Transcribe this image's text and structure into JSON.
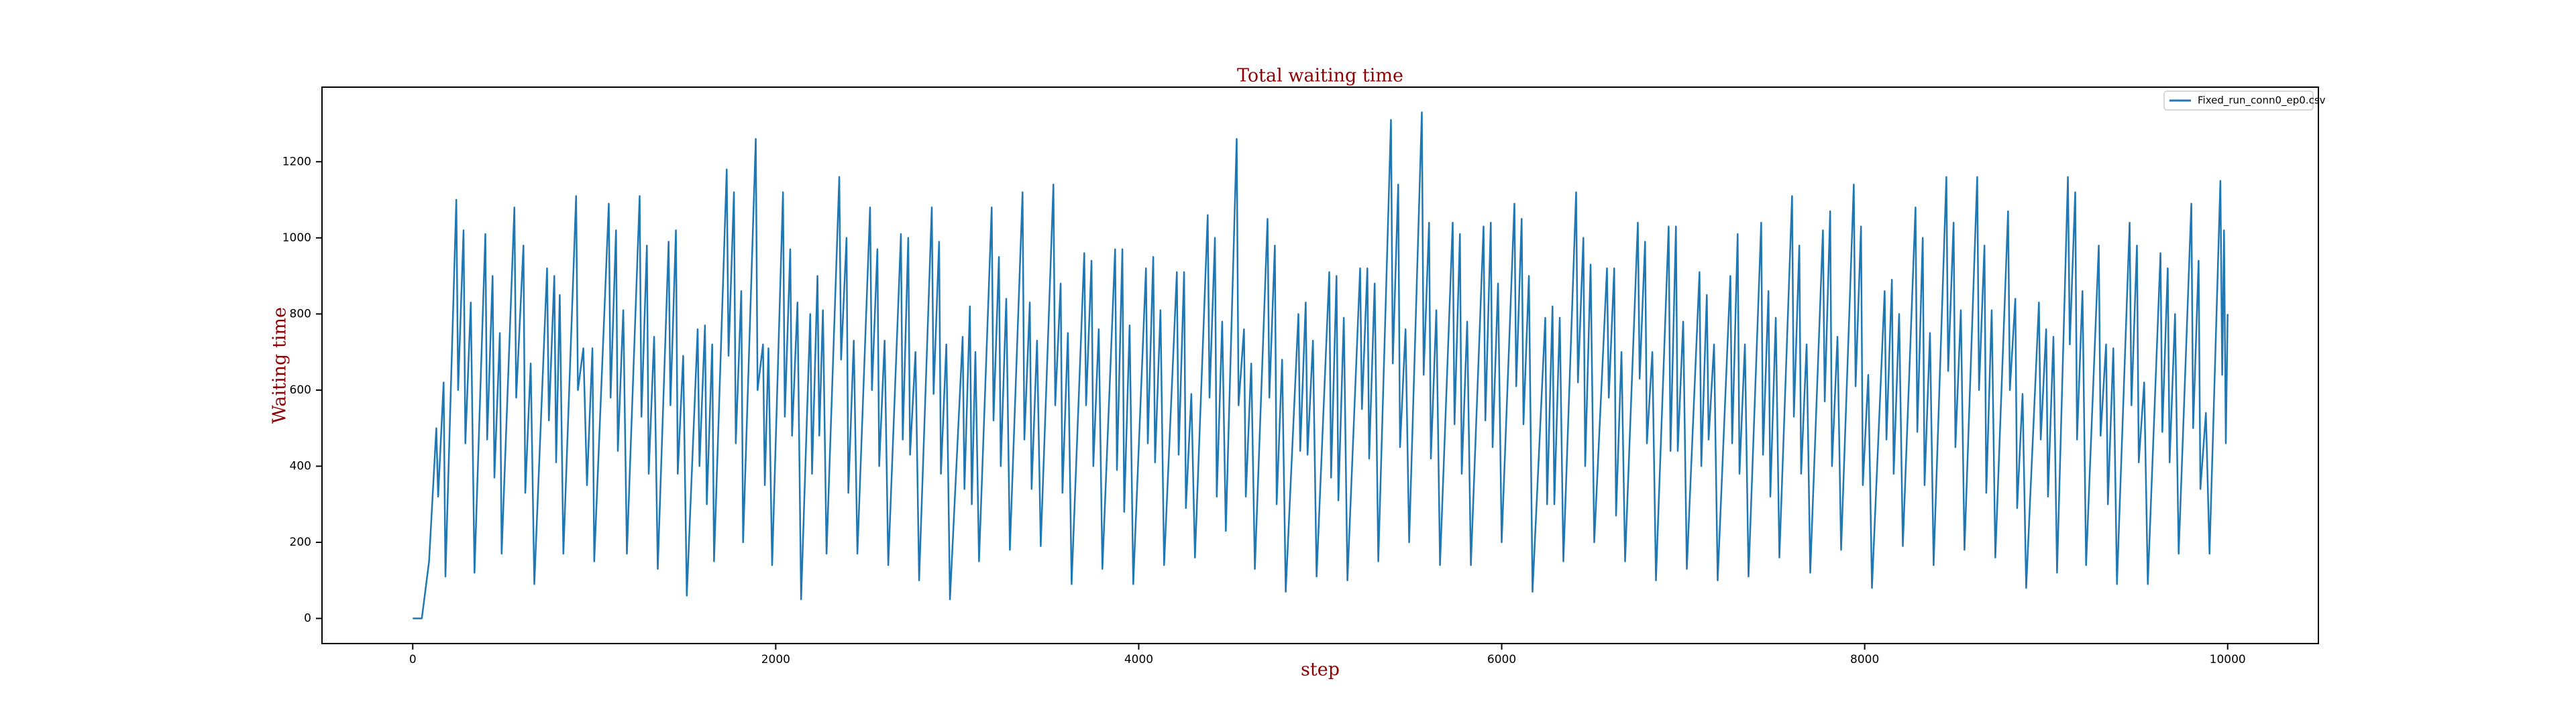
{
  "chart_data": {
    "type": "line",
    "title": "Total waiting time",
    "xlabel": "step",
    "ylabel": "Waiting time",
    "x": [
      0,
      50,
      90,
      130,
      140,
      170,
      180,
      240,
      250,
      280,
      290,
      320,
      340,
      400,
      410,
      440,
      450,
      480,
      490,
      560,
      570,
      610,
      620,
      650,
      670,
      740,
      750,
      780,
      790,
      810,
      830,
      900,
      910,
      940,
      960,
      990,
      1000,
      1080,
      1090,
      1120,
      1130,
      1160,
      1180,
      1250,
      1260,
      1290,
      1300,
      1330,
      1350,
      1410,
      1420,
      1450,
      1460,
      1490,
      1510,
      1570,
      1580,
      1610,
      1620,
      1650,
      1660,
      1730,
      1740,
      1770,
      1780,
      1810,
      1820,
      1890,
      1900,
      1930,
      1940,
      1960,
      1980,
      2040,
      2050,
      2080,
      2090,
      2120,
      2140,
      2190,
      2200,
      2230,
      2240,
      2260,
      2280,
      2350,
      2360,
      2390,
      2400,
      2430,
      2450,
      2520,
      2530,
      2560,
      2570,
      2600,
      2620,
      2690,
      2700,
      2730,
      2740,
      2770,
      2790,
      2860,
      2870,
      2900,
      2910,
      2940,
      2960,
      3030,
      3040,
      3070,
      3080,
      3100,
      3120,
      3190,
      3200,
      3230,
      3240,
      3270,
      3290,
      3360,
      3370,
      3400,
      3410,
      3440,
      3460,
      3530,
      3540,
      3570,
      3580,
      3610,
      3630,
      3700,
      3710,
      3740,
      3750,
      3780,
      3800,
      3870,
      3880,
      3910,
      3920,
      3950,
      3970,
      4040,
      4050,
      4080,
      4090,
      4120,
      4140,
      4210,
      4220,
      4250,
      4260,
      4290,
      4310,
      4380,
      4390,
      4420,
      4430,
      4460,
      4480,
      4540,
      4550,
      4580,
      4590,
      4620,
      4640,
      4710,
      4720,
      4750,
      4760,
      4790,
      4810,
      4880,
      4890,
      4920,
      4930,
      4960,
      4980,
      5050,
      5060,
      5090,
      5100,
      5130,
      5150,
      5220,
      5230,
      5260,
      5270,
      5300,
      5320,
      5390,
      5400,
      5430,
      5440,
      5470,
      5490,
      5560,
      5570,
      5600,
      5610,
      5640,
      5660,
      5730,
      5740,
      5770,
      5780,
      5810,
      5830,
      5900,
      5910,
      5940,
      5950,
      5980,
      6000,
      6070,
      6080,
      6110,
      6120,
      6150,
      6170,
      6240,
      6250,
      6280,
      6290,
      6320,
      6340,
      6410,
      6420,
      6450,
      6460,
      6490,
      6510,
      6580,
      6590,
      6620,
      6630,
      6660,
      6680,
      6750,
      6760,
      6790,
      6800,
      6830,
      6850,
      6920,
      6930,
      6960,
      6970,
      7000,
      7020,
      7090,
      7100,
      7130,
      7140,
      7170,
      7190,
      7260,
      7270,
      7300,
      7310,
      7340,
      7360,
      7430,
      7440,
      7470,
      7480,
      7510,
      7530,
      7600,
      7610,
      7640,
      7650,
      7680,
      7700,
      7770,
      7780,
      7810,
      7820,
      7850,
      7870,
      7940,
      7950,
      7980,
      7990,
      8020,
      8040,
      8110,
      8120,
      8150,
      8160,
      8190,
      8210,
      8280,
      8290,
      8320,
      8330,
      8360,
      8380,
      8450,
      8460,
      8490,
      8500,
      8530,
      8550,
      8620,
      8630,
      8660,
      8670,
      8700,
      8720,
      8790,
      8800,
      8830,
      8840,
      8870,
      8890,
      8960,
      8970,
      9000,
      9010,
      9040,
      9060,
      9120,
      9130,
      9160,
      9170,
      9200,
      9220,
      9290,
      9300,
      9330,
      9340,
      9370,
      9390,
      9460,
      9470,
      9500,
      9510,
      9540,
      9560,
      9630,
      9640,
      9670,
      9680,
      9710,
      9730,
      9800,
      9810,
      9840,
      9850,
      9880,
      9900,
      9960,
      9970,
      9980,
      9990,
      10000
    ],
    "series": [
      {
        "name": "Fixed_run_conn0_ep0.csv",
        "color": "#1f77b4",
        "values": [
          0,
          0,
          150,
          500,
          320,
          620,
          110,
          1100,
          600,
          1020,
          460,
          830,
          120,
          1010,
          470,
          900,
          370,
          750,
          170,
          1080,
          580,
          980,
          330,
          670,
          90,
          920,
          520,
          900,
          410,
          850,
          170,
          1110,
          600,
          710,
          350,
          710,
          150,
          1090,
          580,
          1020,
          440,
          810,
          170,
          1110,
          530,
          980,
          380,
          740,
          130,
          990,
          560,
          1020,
          380,
          690,
          60,
          760,
          400,
          770,
          300,
          720,
          150,
          1180,
          690,
          1120,
          460,
          860,
          200,
          1260,
          600,
          720,
          350,
          710,
          140,
          1120,
          530,
          970,
          480,
          830,
          50,
          800,
          380,
          900,
          480,
          810,
          170,
          1160,
          680,
          1000,
          330,
          730,
          170,
          1080,
          600,
          970,
          400,
          730,
          140,
          1010,
          470,
          1000,
          430,
          700,
          100,
          1080,
          590,
          990,
          380,
          720,
          50,
          740,
          340,
          820,
          300,
          700,
          150,
          1080,
          520,
          950,
          400,
          840,
          180,
          1120,
          470,
          830,
          340,
          730,
          190,
          1140,
          560,
          880,
          330,
          750,
          90,
          960,
          560,
          940,
          400,
          760,
          130,
          970,
          390,
          970,
          280,
          770,
          90,
          920,
          460,
          950,
          410,
          810,
          140,
          910,
          430,
          910,
          290,
          590,
          160,
          1060,
          580,
          1000,
          320,
          780,
          230,
          1260,
          560,
          760,
          320,
          670,
          130,
          1050,
          580,
          980,
          300,
          680,
          70,
          800,
          440,
          830,
          430,
          730,
          110,
          910,
          370,
          900,
          310,
          790,
          100,
          920,
          550,
          920,
          420,
          880,
          150,
          1310,
          670,
          1140,
          450,
          760,
          200,
          1330,
          640,
          1040,
          420,
          810,
          140,
          1040,
          510,
          1010,
          380,
          780,
          140,
          1030,
          520,
          1040,
          450,
          880,
          200,
          1090,
          610,
          1050,
          510,
          900,
          70,
          790,
          300,
          820,
          300,
          790,
          150,
          1120,
          620,
          1000,
          400,
          930,
          200,
          920,
          580,
          920,
          270,
          700,
          150,
          1040,
          630,
          990,
          460,
          700,
          100,
          1030,
          440,
          1030,
          440,
          780,
          130,
          910,
          400,
          850,
          470,
          720,
          100,
          900,
          460,
          1010,
          380,
          720,
          110,
          1040,
          430,
          860,
          320,
          790,
          160,
          1110,
          530,
          980,
          380,
          720,
          120,
          1020,
          570,
          1070,
          400,
          740,
          180,
          1140,
          610,
          1030,
          350,
          640,
          80,
          860,
          470,
          890,
          380,
          800,
          190,
          1080,
          490,
          1000,
          350,
          750,
          140,
          1160,
          650,
          1040,
          450,
          810,
          180,
          1160,
          600,
          980,
          330,
          810,
          160,
          1070,
          600,
          840,
          290,
          590,
          80,
          830,
          470,
          760,
          320,
          740,
          120,
          1160,
          720,
          1120,
          470,
          860,
          140,
          980,
          480,
          720,
          300,
          710,
          90,
          1040,
          560,
          980,
          410,
          620,
          90,
          960,
          490,
          920,
          410,
          800,
          170,
          1090,
          500,
          940,
          340,
          540,
          170,
          1150,
          640,
          1020,
          460,
          800
        ]
      }
    ],
    "xlim": [
      -500,
      10500
    ],
    "ylim": [
      -66,
      1396
    ],
    "xticks": [
      0,
      2000,
      4000,
      6000,
      8000,
      10000
    ],
    "yticks": [
      0,
      200,
      400,
      600,
      800,
      1000,
      1200
    ],
    "legend": "upper right"
  }
}
